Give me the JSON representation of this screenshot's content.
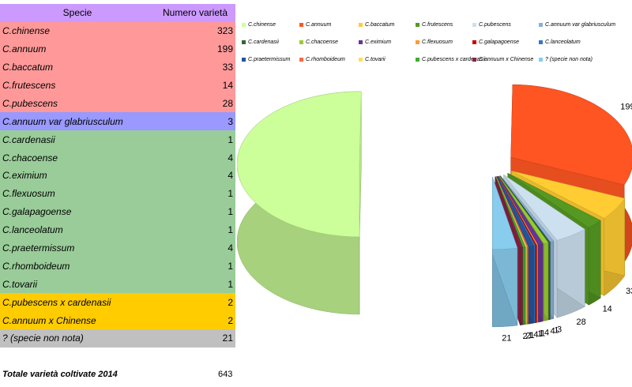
{
  "table": {
    "header": {
      "species": "Specie",
      "count": "Numero varietà"
    },
    "rows": [
      {
        "name": "C.chinense",
        "value": 323,
        "group": "main"
      },
      {
        "name": "C.annuum",
        "value": 199,
        "group": "main"
      },
      {
        "name": "C.baccatum",
        "value": 33,
        "group": "main"
      },
      {
        "name": "C.frutescens",
        "value": 14,
        "group": "main"
      },
      {
        "name": "C.pubescens",
        "value": 28,
        "group": "main"
      },
      {
        "name": "C.annuum var glabriusculum",
        "value": 3,
        "group": "variety"
      },
      {
        "name": "C.cardenasii",
        "value": 1,
        "group": "minor"
      },
      {
        "name": "C.chacoense",
        "value": 4,
        "group": "minor"
      },
      {
        "name": "C.eximium",
        "value": 4,
        "group": "minor"
      },
      {
        "name": "C.flexuosum",
        "value": 1,
        "group": "minor"
      },
      {
        "name": "C.galapagoense",
        "value": 1,
        "group": "minor"
      },
      {
        "name": "C.lanceolatum",
        "value": 1,
        "group": "minor"
      },
      {
        "name": "C.praetermissum",
        "value": 4,
        "group": "minor"
      },
      {
        "name": "C.rhomboideum",
        "value": 1,
        "group": "minor"
      },
      {
        "name": "C.tovarii",
        "value": 1,
        "group": "minor"
      },
      {
        "name": "C.pubescens x cardenasii",
        "value": 2,
        "group": "hybrid"
      },
      {
        "name": "C.annuum x Chinense",
        "value": 2,
        "group": "hybrid"
      },
      {
        "name": "? (specie non nota)",
        "value": 21,
        "group": "unknown"
      }
    ],
    "group_colors": {
      "header": "#cc99ff",
      "main": "#ff9999",
      "variety": "#9999ff",
      "minor": "#99cc99",
      "hybrid": "#ffcc00",
      "unknown": "#c0c0c0"
    }
  },
  "total": {
    "label": "Totale varietà coltivate 2014",
    "value": "643"
  },
  "chart_data": {
    "type": "pie",
    "style": "3d-exploded",
    "title": "",
    "legend_position": "top",
    "slices": [
      {
        "name": "C.chinense",
        "value": 323,
        "color": "#ccff99"
      },
      {
        "name": "C.annuum",
        "value": 199,
        "color": "#ff5522"
      },
      {
        "name": "C.baccatum",
        "value": 33,
        "color": "#ffcc33"
      },
      {
        "name": "C.frutescens",
        "value": 14,
        "color": "#559922"
      },
      {
        "name": "C.pubescens",
        "value": 28,
        "color": "#cce0f0"
      },
      {
        "name": "C.annuum var glabriusculum",
        "value": 3,
        "color": "#8ab0d8"
      },
      {
        "name": "C.cardenasii",
        "value": 1,
        "color": "#336633"
      },
      {
        "name": "C.chacoense",
        "value": 4,
        "color": "#99cc33"
      },
      {
        "name": "C.eximium",
        "value": 4,
        "color": "#663399"
      },
      {
        "name": "C.flexuosum",
        "value": 1,
        "color": "#ff9933"
      },
      {
        "name": "C.galapagoense",
        "value": 1,
        "color": "#cc0000"
      },
      {
        "name": "C.lanceolatum",
        "value": 1,
        "color": "#3377cc"
      },
      {
        "name": "C.praetermissum",
        "value": 4,
        "color": "#225599"
      },
      {
        "name": "C.rhomboideum",
        "value": 1,
        "color": "#ff6644"
      },
      {
        "name": "C.tovarii",
        "value": 1,
        "color": "#ffdd55"
      },
      {
        "name": "C.pubescens x cardenasii",
        "value": 2,
        "color": "#44aa33"
      },
      {
        "name": "C.annuum x Chinense",
        "value": 2,
        "color": "#882244"
      },
      {
        "name": "? (specie non nota)",
        "value": 21,
        "color": "#88ccee"
      }
    ]
  }
}
